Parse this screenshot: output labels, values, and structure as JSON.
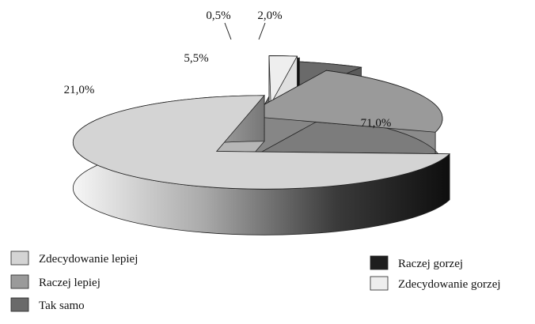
{
  "chart_data": {
    "type": "pie",
    "style": "3d-exploded",
    "title": "",
    "categories": [
      "Zdecydowanie lepiej",
      "Raczej lepiej",
      "Tak samo",
      "Raczej gorzej",
      "Zdecydowanie gorzej"
    ],
    "values": [
      71.0,
      21.0,
      5.5,
      0.5,
      2.0
    ],
    "value_labels": [
      "71,0%",
      "21,0%",
      "5,5%",
      "0,5%",
      "2,0%"
    ],
    "unit": "%",
    "colors": [
      "#d4d4d4",
      "#9a9a9a",
      "#6a6a6a",
      "#1e1e1e",
      "#eeeeee"
    ],
    "legend_position": "bottom"
  }
}
